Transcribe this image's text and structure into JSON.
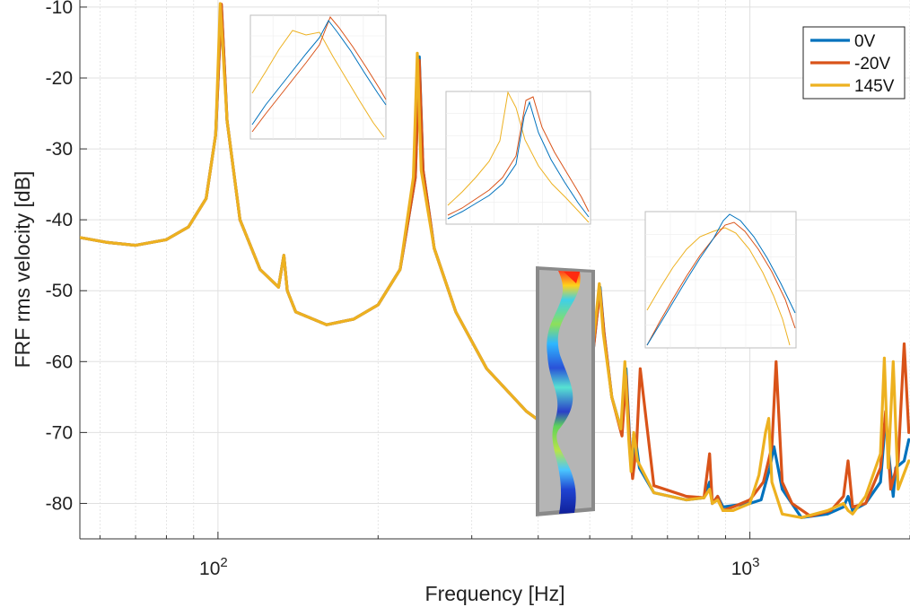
{
  "chart_data": {
    "type": "line",
    "xscale": "log",
    "xlabel": "Frequency [Hz]",
    "ylabel": "FRF rms velocity [dB]",
    "xlim": [
      55,
      2000
    ],
    "ylim": [
      -85,
      -9
    ],
    "grid": true,
    "legend_position": "top-right",
    "x_ticks": [
      {
        "value": 100,
        "base": "10",
        "exp": "2"
      },
      {
        "value": 1000,
        "base": "10",
        "exp": "3"
      }
    ],
    "y_ticks": [
      -10,
      -20,
      -30,
      -40,
      -50,
      -60,
      -70,
      -80
    ],
    "series": [
      {
        "name": "0V",
        "color": "#0072BD",
        "x": [
          55,
          62,
          70,
          80,
          88,
          95,
          99,
          101.5,
          104,
          110,
          120,
          130,
          133,
          135,
          140,
          160,
          180,
          200,
          220,
          235,
          239,
          243,
          255,
          280,
          320,
          380,
          440,
          480,
          505,
          515,
          523,
          532,
          550,
          575,
          585,
          595,
          602,
          610,
          620,
          660,
          760,
          820,
          840,
          850,
          870,
          890,
          930,
          1000,
          1050,
          1090,
          1110,
          1150,
          1250,
          1400,
          1500,
          1530,
          1560,
          1650,
          1760,
          1800,
          1830,
          1860,
          1880,
          1950,
          1990
        ],
        "y": [
          -42.5,
          -43.2,
          -43.6,
          -42.8,
          -41.0,
          -37.0,
          -28.0,
          -9.8,
          -26.0,
          -40.0,
          -47.0,
          -49.5,
          -45.0,
          -50.0,
          -53.0,
          -54.8,
          -54.0,
          -52.0,
          -47.0,
          -34.0,
          -17.0,
          -33.0,
          -44.0,
          -53.0,
          -61.0,
          -67.0,
          -70.5,
          -68.0,
          -60.0,
          -54.0,
          -49.5,
          -56.0,
          -65.0,
          -70.0,
          -61.0,
          -71.5,
          -76.0,
          -71.0,
          -75.0,
          -78.5,
          -79.5,
          -79.2,
          -77.0,
          -80.0,
          -79.0,
          -80.5,
          -80.3,
          -80.0,
          -79.5,
          -75.0,
          -72.0,
          -78.0,
          -82.0,
          -81.5,
          -80.5,
          -79.0,
          -81.0,
          -80.0,
          -77.0,
          -68.0,
          -74.0,
          -79.0,
          -75.0,
          -74.0,
          -71.0
        ]
      },
      {
        "name": "-20V",
        "color": "#D95319",
        "x": [
          55,
          62,
          70,
          80,
          88,
          95,
          99,
          101.5,
          104,
          110,
          120,
          130,
          133,
          135,
          140,
          160,
          180,
          200,
          220,
          235,
          239,
          243,
          255,
          280,
          320,
          380,
          440,
          480,
          505,
          515,
          523,
          532,
          550,
          575,
          585,
          595,
          602,
          612,
          622,
          660,
          760,
          820,
          840,
          850,
          870,
          890,
          930,
          1000,
          1060,
          1100,
          1120,
          1150,
          1200,
          1300,
          1420,
          1500,
          1530,
          1560,
          1650,
          1760,
          1800,
          1840,
          1900,
          1950,
          1990
        ],
        "y": [
          -42.5,
          -43.2,
          -43.6,
          -42.8,
          -41.0,
          -37.0,
          -28.0,
          -9.6,
          -26.0,
          -40.0,
          -47.0,
          -49.5,
          -45.0,
          -50.0,
          -53.0,
          -54.8,
          -54.0,
          -52.0,
          -47.0,
          -34.0,
          -17.5,
          -33.0,
          -44.0,
          -53.0,
          -61.0,
          -67.0,
          -70.5,
          -68.0,
          -60.0,
          -54.0,
          -50.0,
          -56.0,
          -65.0,
          -70.5,
          -62.0,
          -72.0,
          -76.5,
          -72.0,
          -61.0,
          -77.5,
          -79.0,
          -79.2,
          -73.0,
          -80.0,
          -79.0,
          -81.0,
          -80.5,
          -79.5,
          -77.0,
          -72.0,
          -60.0,
          -77.0,
          -80.0,
          -81.8,
          -81.0,
          -79.0,
          -74.0,
          -80.5,
          -80.0,
          -75.0,
          -67.0,
          -78.0,
          -74.0,
          -57.5,
          -70.0
        ]
      },
      {
        "name": "145V",
        "color": "#EDB120",
        "x": [
          55,
          62,
          70,
          80,
          88,
          95,
          99,
          101,
          104,
          110,
          120,
          130,
          133,
          135,
          140,
          160,
          180,
          200,
          220,
          233,
          237,
          241,
          255,
          280,
          320,
          380,
          440,
          480,
          503,
          513,
          521,
          530,
          550,
          572,
          582,
          592,
          598,
          605,
          615,
          660,
          760,
          820,
          840,
          850,
          870,
          890,
          930,
          1000,
          1040,
          1070,
          1085,
          1100,
          1150,
          1250,
          1400,
          1500,
          1530,
          1560,
          1650,
          1760,
          1790,
          1820,
          1860,
          1900,
          1990
        ],
        "y": [
          -42.5,
          -43.2,
          -43.6,
          -42.8,
          -41.0,
          -37.0,
          -28.0,
          -9.5,
          -26.0,
          -40.0,
          -47.0,
          -49.5,
          -45.0,
          -50.0,
          -53.0,
          -54.8,
          -54.0,
          -52.0,
          -47.0,
          -34.0,
          -16.5,
          -33.0,
          -44.0,
          -53.0,
          -61.0,
          -67.0,
          -70.5,
          -68.0,
          -60.0,
          -54.0,
          -49.0,
          -56.0,
          -65.0,
          -69.5,
          -60.0,
          -71.0,
          -75.5,
          -70.0,
          -74.0,
          -78.5,
          -79.5,
          -79.2,
          -78.0,
          -80.0,
          -79.5,
          -81.0,
          -81.0,
          -80.0,
          -76.0,
          -70.0,
          -68.0,
          -77.0,
          -81.5,
          -82.0,
          -81.0,
          -80.0,
          -81.0,
          -81.5,
          -79.0,
          -73.0,
          -59.5,
          -75.0,
          -60.0,
          -78.0,
          -74.0
        ]
      }
    ]
  },
  "insets": [
    {
      "id": "inset-peak-1"
    },
    {
      "id": "inset-peak-2"
    },
    {
      "id": "inset-peak-3"
    }
  ],
  "mode_shape_image": {
    "icon": "vibration-mode-shape-image"
  },
  "colors": {
    "grid": "#e0e0e0",
    "axis": "#333333",
    "background": "#ffffff"
  }
}
